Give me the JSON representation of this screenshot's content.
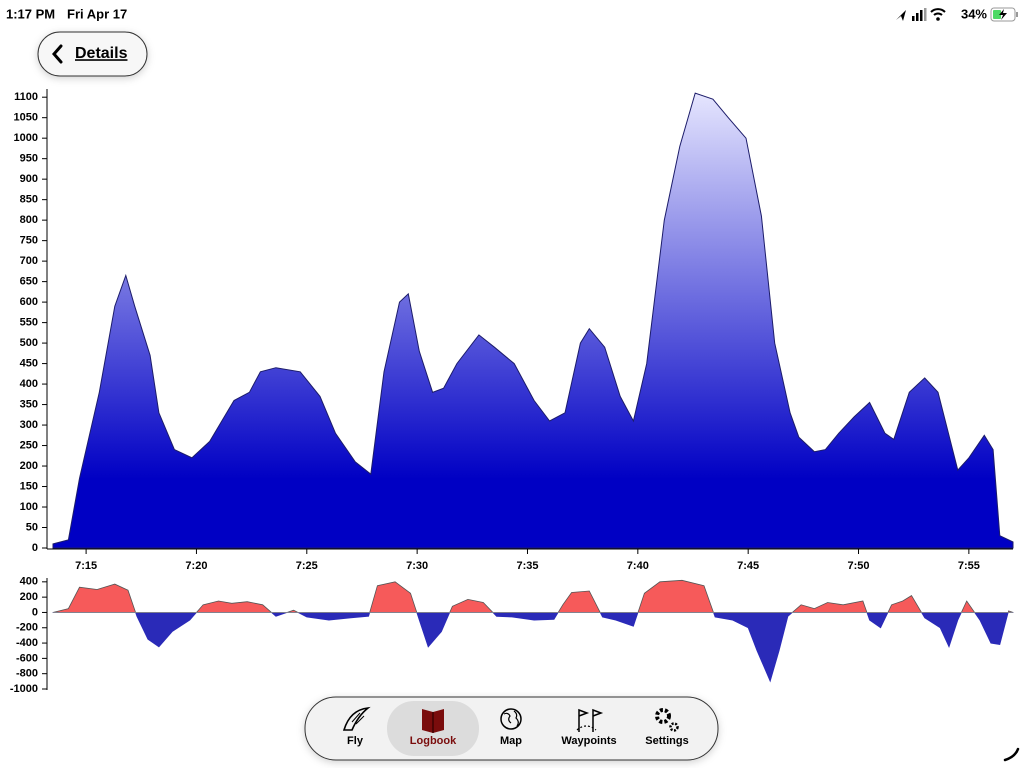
{
  "status_bar": {
    "time": "1:17 PM",
    "date": "Fri Apr 17",
    "battery": "34%"
  },
  "back_button": "Details",
  "chart_data": [
    {
      "type": "area",
      "x": [
        13.5,
        14.2,
        14.7,
        15.6,
        16.3,
        16.8,
        17.2,
        17.9,
        18.3,
        19.0,
        19.8,
        20.6,
        21.7,
        22.4,
        22.9,
        23.6,
        24.7,
        25.6,
        26.3,
        27.2,
        27.9,
        28.5,
        29.2,
        29.6,
        30.1,
        30.7,
        31.2,
        31.8,
        32.8,
        33.5,
        34.4,
        35.3,
        36.0,
        36.7,
        37.4,
        37.8,
        38.5,
        39.2,
        39.8,
        40.4,
        41.2,
        41.9,
        42.6,
        43.4,
        44.1,
        44.9,
        45.6,
        46.2,
        46.9,
        47.3,
        48.0,
        48.5,
        49.1,
        49.8,
        50.5,
        51.2,
        51.6,
        52.3,
        53.0,
        53.6,
        54.5,
        55.0,
        55.7,
        56.1,
        56.4,
        57.0
      ],
      "values": [
        10,
        20,
        170,
        380,
        590,
        665,
        590,
        470,
        330,
        240,
        220,
        260,
        360,
        380,
        430,
        440,
        430,
        370,
        280,
        210,
        180,
        430,
        600,
        620,
        480,
        380,
        390,
        450,
        520,
        490,
        450,
        360,
        310,
        330,
        500,
        535,
        490,
        370,
        310,
        450,
        800,
        980,
        1110,
        1095,
        1050,
        1000,
        810,
        500,
        330,
        270,
        235,
        240,
        280,
        320,
        355,
        280,
        265,
        380,
        415,
        380,
        190,
        220,
        275,
        240,
        30,
        15
      ],
      "color_top": "#e8e8ff",
      "color_bottom": "#0000c4",
      "line_color": "#1c1c6a",
      "xlim": [
        13.5,
        57
      ],
      "xticks": [
        {
          "value": 15,
          "label": "7:15"
        },
        {
          "value": 20,
          "label": "7:20"
        },
        {
          "value": 25,
          "label": "7:25"
        },
        {
          "value": 30,
          "label": "7:30"
        },
        {
          "value": 35,
          "label": "7:35"
        },
        {
          "value": 40,
          "label": "7:40"
        },
        {
          "value": 45,
          "label": "7:45"
        },
        {
          "value": 50,
          "label": "7:50"
        },
        {
          "value": 55,
          "label": "7:55"
        }
      ],
      "ylim": [
        0,
        1120
      ],
      "yticks": [
        0,
        50,
        100,
        150,
        200,
        250,
        300,
        350,
        400,
        450,
        500,
        550,
        600,
        650,
        700,
        750,
        800,
        850,
        900,
        950,
        1000,
        1050,
        1100
      ]
    },
    {
      "type": "area",
      "x": [
        13.5,
        14.2,
        14.7,
        15.5,
        16.3,
        16.9,
        17.3,
        17.8,
        18.3,
        18.9,
        19.7,
        20.3,
        21,
        21.6,
        22.3,
        23,
        23.6,
        24.4,
        25,
        26,
        27,
        27.8,
        28.2,
        29,
        29.7,
        30.1,
        30.5,
        31.1,
        31.6,
        32.3,
        33,
        33.6,
        34.3,
        35.3,
        36.2,
        36.6,
        37,
        37.8,
        38.4,
        39,
        39.8,
        40.3,
        41,
        42,
        43,
        43.5,
        44.3,
        45,
        45.4,
        46,
        46.4,
        46.8,
        47.4,
        48,
        48.6,
        49.3,
        50.2,
        50.5,
        51,
        51.5,
        52,
        52.4,
        53,
        53.7,
        54.1,
        54.5,
        54.9,
        55.5,
        56,
        56.4,
        56.8,
        57
      ],
      "values": [
        0,
        50,
        330,
        300,
        370,
        290,
        -50,
        -350,
        -450,
        -250,
        -100,
        100,
        150,
        120,
        140,
        100,
        -50,
        30,
        -60,
        -100,
        -70,
        -50,
        350,
        400,
        250,
        -100,
        -450,
        -250,
        80,
        170,
        130,
        -50,
        -60,
        -100,
        -90,
        100,
        260,
        280,
        -60,
        -100,
        -180,
        250,
        400,
        420,
        350,
        -60,
        -100,
        -200,
        -500,
        -900,
        -500,
        -50,
        100,
        50,
        130,
        100,
        150,
        -100,
        -200,
        100,
        150,
        220,
        -70,
        -200,
        -450,
        -100,
        150,
        -100,
        -400,
        -420,
        20,
        0
      ],
      "positive_color": "#f65a5a",
      "negative_color": "#2a2ab8",
      "line_color": "#555555",
      "xlim": [
        13.5,
        57
      ],
      "ylim": [
        -1000,
        450
      ],
      "yticks": [
        400,
        200,
        0,
        -200,
        -400,
        -600,
        -800,
        -1000
      ]
    }
  ],
  "tab_bar": {
    "tabs": [
      "Fly",
      "Logbook",
      "Map",
      "Waypoints",
      "Settings"
    ],
    "selected": 1
  }
}
